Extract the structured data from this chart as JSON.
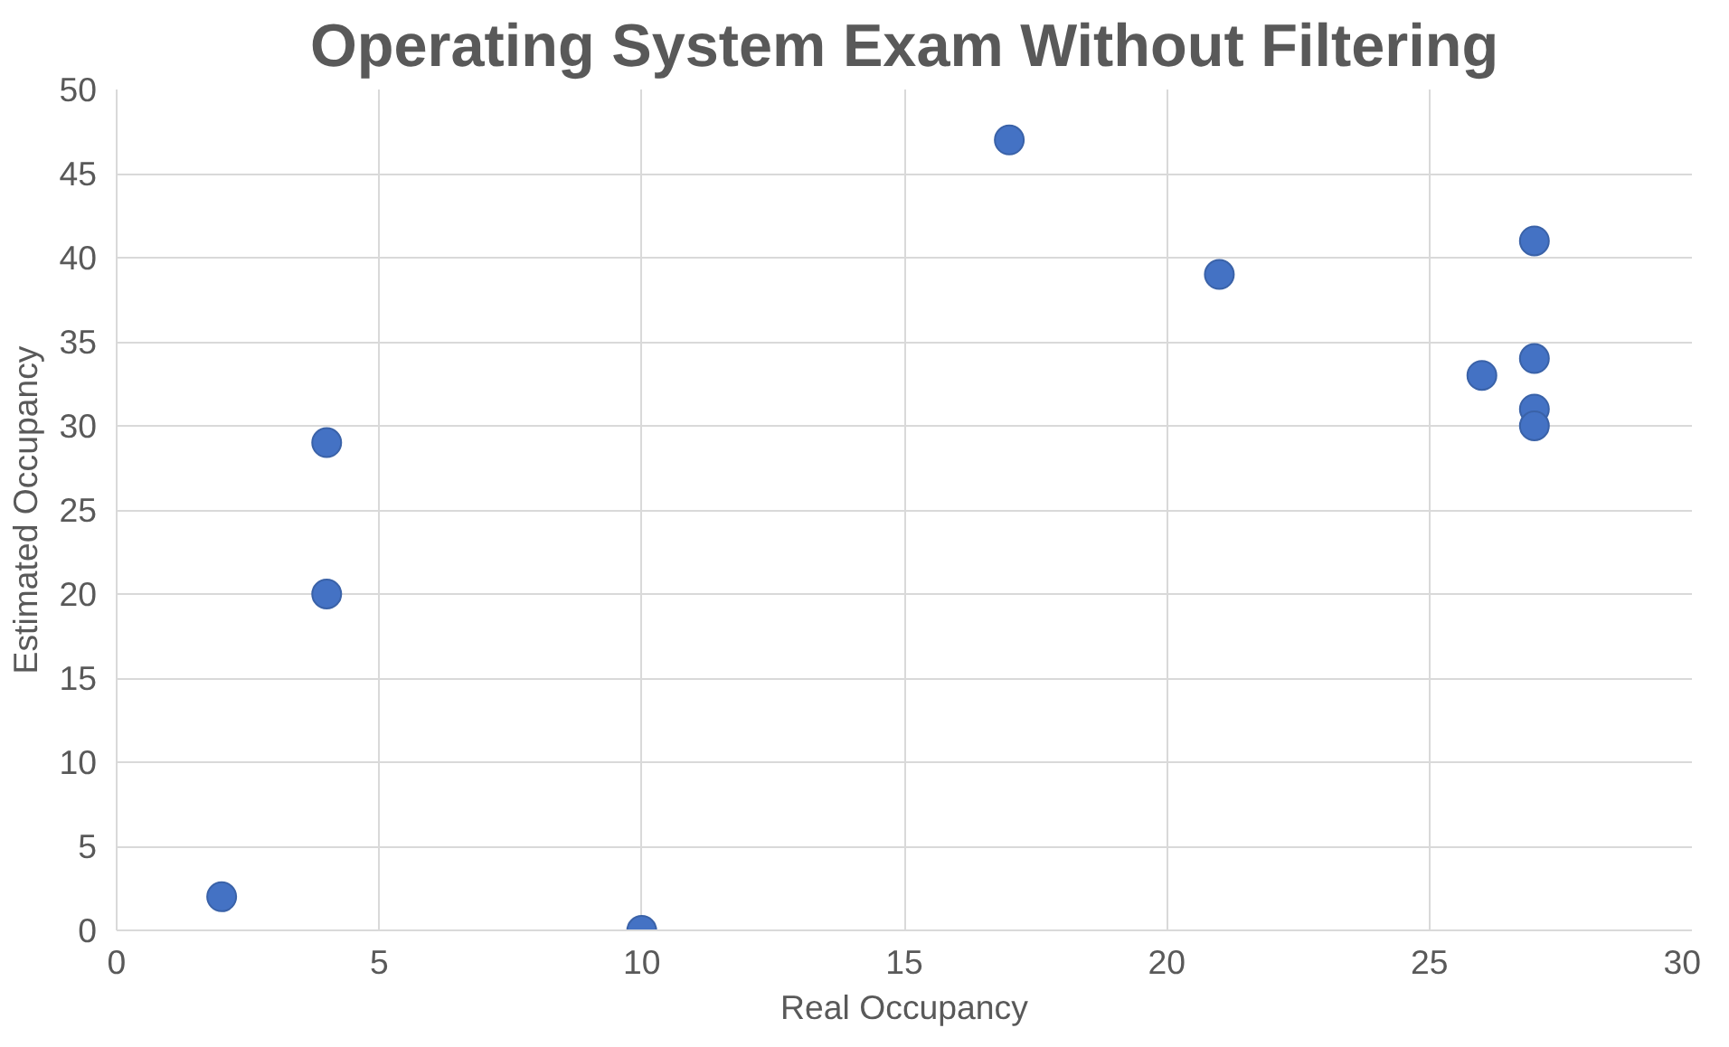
{
  "chart_data": {
    "type": "scatter",
    "title": "Operating System Exam Without Filtering",
    "xlabel": "Real Occupancy",
    "ylabel": "Estimated Occupancy",
    "x": [
      2,
      4,
      4,
      10,
      17,
      21,
      26,
      27,
      27,
      27,
      27
    ],
    "values": [
      2,
      20,
      29,
      0,
      47,
      39,
      33,
      41,
      34,
      31,
      30
    ],
    "color": "#4472c4",
    "marker": "circle",
    "xlim": [
      0,
      30
    ],
    "xticks": [
      0,
      5,
      10,
      15,
      20,
      25,
      30
    ],
    "ylim": [
      0,
      50
    ],
    "yticks": [
      0,
      5,
      10,
      15,
      20,
      25,
      30,
      35,
      40,
      45,
      50
    ],
    "grid": true
  }
}
